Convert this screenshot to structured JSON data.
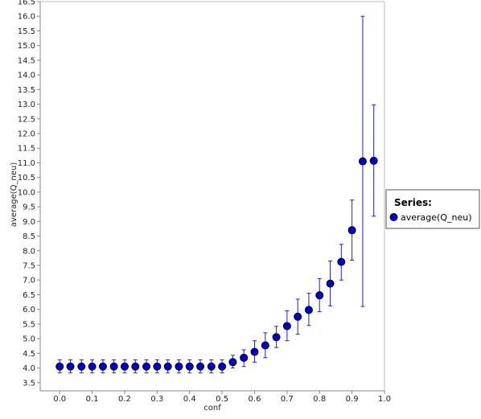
{
  "colors": {
    "marker_fill": "#0000cc",
    "marker_stroke": "#000000",
    "error_bar": "#2222cc",
    "axis": "#888888",
    "frame": "#bbbbbb",
    "background": "#ffffff"
  },
  "legend": {
    "title": "Series:",
    "placement": "right",
    "items": [
      {
        "label": "average(Q_neu)",
        "color": "#0000cc"
      }
    ]
  },
  "chart_data": {
    "type": "scatter",
    "title": "",
    "xlabel": "conf",
    "ylabel": "average(Q_neu)",
    "xlim": [
      -0.06,
      1.0
    ],
    "ylim": [
      3.22,
      16.5
    ],
    "grid": false,
    "x_ticks": [
      "0.0",
      "0.1",
      "0.2",
      "0.3",
      "0.4",
      "0.5",
      "0.6",
      "0.7",
      "0.8",
      "0.9",
      "1.0"
    ],
    "y_ticks": [
      "3.5",
      "4.0",
      "4.5",
      "5.0",
      "5.5",
      "6.0",
      "6.5",
      "7.0",
      "7.5",
      "8.0",
      "8.5",
      "9.0",
      "9.5",
      "10.0",
      "10.5",
      "11.0",
      "11.5",
      "12.0",
      "12.5",
      "13.0",
      "13.5",
      "14.0",
      "14.5",
      "15.0",
      "15.5",
      "16.0",
      "16.5"
    ],
    "series": [
      {
        "name": "average(Q_neu)",
        "error_bars": true,
        "points": [
          {
            "x": 0.0,
            "y": 4.05,
            "low": 3.83,
            "high": 4.28
          },
          {
            "x": 0.033,
            "y": 4.05,
            "low": 3.83,
            "high": 4.28
          },
          {
            "x": 0.067,
            "y": 4.05,
            "low": 3.83,
            "high": 4.28
          },
          {
            "x": 0.1,
            "y": 4.05,
            "low": 3.83,
            "high": 4.28
          },
          {
            "x": 0.133,
            "y": 4.05,
            "low": 3.83,
            "high": 4.28
          },
          {
            "x": 0.167,
            "y": 4.05,
            "low": 3.83,
            "high": 4.28
          },
          {
            "x": 0.2,
            "y": 4.05,
            "low": 3.83,
            "high": 4.28
          },
          {
            "x": 0.233,
            "y": 4.05,
            "low": 3.83,
            "high": 4.28
          },
          {
            "x": 0.267,
            "y": 4.05,
            "low": 3.83,
            "high": 4.28
          },
          {
            "x": 0.3,
            "y": 4.05,
            "low": 3.83,
            "high": 4.28
          },
          {
            "x": 0.333,
            "y": 4.05,
            "low": 3.83,
            "high": 4.28
          },
          {
            "x": 0.367,
            "y": 4.05,
            "low": 3.83,
            "high": 4.28
          },
          {
            "x": 0.4,
            "y": 4.05,
            "low": 3.83,
            "high": 4.28
          },
          {
            "x": 0.433,
            "y": 4.05,
            "low": 3.83,
            "high": 4.28
          },
          {
            "x": 0.467,
            "y": 4.05,
            "low": 3.83,
            "high": 4.28
          },
          {
            "x": 0.5,
            "y": 4.05,
            "low": 3.83,
            "high": 4.28
          },
          {
            "x": 0.533,
            "y": 4.2,
            "low": 4.0,
            "high": 4.43
          },
          {
            "x": 0.567,
            "y": 4.35,
            "low": 4.05,
            "high": 4.62
          },
          {
            "x": 0.6,
            "y": 4.55,
            "low": 4.2,
            "high": 4.93
          },
          {
            "x": 0.633,
            "y": 4.77,
            "low": 4.35,
            "high": 5.2
          },
          {
            "x": 0.667,
            "y": 5.05,
            "low": 4.7,
            "high": 5.42
          },
          {
            "x": 0.7,
            "y": 5.43,
            "low": 4.93,
            "high": 5.95
          },
          {
            "x": 0.733,
            "y": 5.75,
            "low": 5.15,
            "high": 6.35
          },
          {
            "x": 0.767,
            "y": 5.98,
            "low": 5.45,
            "high": 6.55
          },
          {
            "x": 0.8,
            "y": 6.48,
            "low": 5.92,
            "high": 7.05
          },
          {
            "x": 0.833,
            "y": 6.88,
            "low": 6.12,
            "high": 7.65
          },
          {
            "x": 0.867,
            "y": 7.62,
            "low": 7.0,
            "high": 8.22
          },
          {
            "x": 0.9,
            "y": 8.7,
            "low": 7.68,
            "high": 9.73
          },
          {
            "x": 0.933,
            "y": 11.05,
            "low": 6.1,
            "high": 16.0
          },
          {
            "x": 0.967,
            "y": 11.07,
            "low": 9.18,
            "high": 12.98
          }
        ]
      }
    ]
  }
}
